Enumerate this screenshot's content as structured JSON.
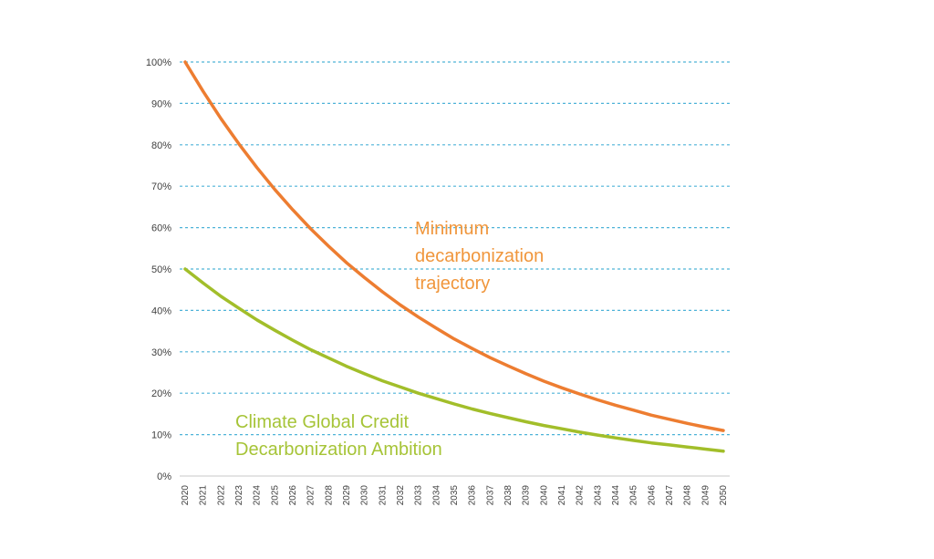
{
  "chart_data": {
    "type": "line",
    "x": [
      2020,
      2021,
      2022,
      2023,
      2024,
      2025,
      2026,
      2027,
      2028,
      2029,
      2030,
      2031,
      2032,
      2033,
      2034,
      2035,
      2036,
      2037,
      2038,
      2039,
      2040,
      2041,
      2042,
      2043,
      2044,
      2045,
      2046,
      2047,
      2048,
      2049,
      2050
    ],
    "series": [
      {
        "name": "Climate Global Credit Decarbonization Ambition",
        "color": "#A2BE2A",
        "values": [
          50,
          46.6,
          43.4,
          40.5,
          37.7,
          35.2,
          32.8,
          30.5,
          28.5,
          26.5,
          24.7,
          23.0,
          21.5,
          20.0,
          18.7,
          17.4,
          16.2,
          15.1,
          14.1,
          13.1,
          12.2,
          11.4,
          10.6,
          9.9,
          9.2,
          8.6,
          8.0,
          7.5,
          7.0,
          6.5,
          6.0
        ]
      },
      {
        "name": "Minimum decarbonization trajectory",
        "color": "#ED7D31",
        "values": [
          100,
          92.9,
          86.3,
          80.2,
          74.5,
          69.2,
          64.3,
          59.7,
          55.5,
          51.5,
          47.9,
          44.5,
          41.3,
          38.4,
          35.7,
          33.1,
          30.8,
          28.6,
          26.6,
          24.7,
          22.9,
          21.3,
          19.8,
          18.4,
          17.1,
          15.9,
          14.7,
          13.7,
          12.7,
          11.8,
          11.0
        ]
      }
    ],
    "title": "",
    "xlabel": "",
    "ylabel": "",
    "ylim": [
      0,
      100
    ],
    "ytick_step": 10,
    "ytick_labels": [
      "0%",
      "10%",
      "20%",
      "30%",
      "40%",
      "50%",
      "60%",
      "70%",
      "80%",
      "90%",
      "100%"
    ],
    "xtick_labels": [
      "2020",
      "2021",
      "2022",
      "2023",
      "2024",
      "2025",
      "2026",
      "2027",
      "2028",
      "2029",
      "2030",
      "2031",
      "2032",
      "2033",
      "2034",
      "2035",
      "2036",
      "2037",
      "2038",
      "2039",
      "2040",
      "2041",
      "2042",
      "2043",
      "2044",
      "2045",
      "2046",
      "2047",
      "2048",
      "2049",
      "2050"
    ],
    "grid": "horizontal-dashed",
    "grid_color": "#4FB3D8",
    "axis_line_color": "#C9C9C9",
    "tick_label_color": "#3F3F3F",
    "legend_position": "none",
    "annotations": [
      {
        "text": "Minimum\ndecarbonization\ntrajectory",
        "color": "#F0963C"
      },
      {
        "text": "Climate Global Credit\nDecarbonization Ambition",
        "color": "#A6C437"
      }
    ]
  }
}
